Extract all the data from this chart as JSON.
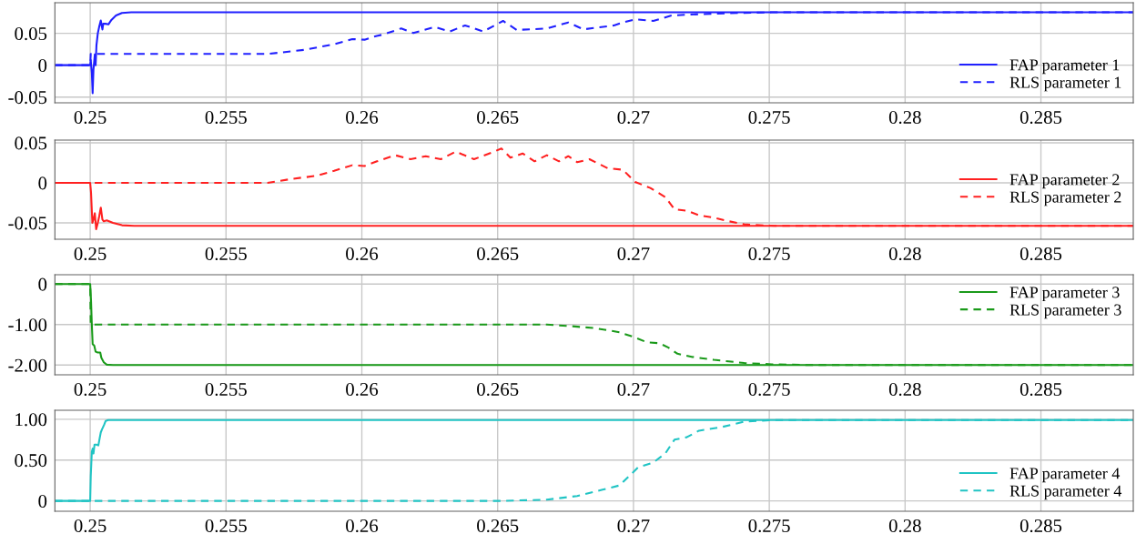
{
  "chart_data": [
    {
      "type": "line",
      "xlim": [
        0.2487,
        0.2884
      ],
      "xticks": [
        0.25,
        0.255,
        0.26,
        0.265,
        0.27,
        0.275,
        0.28,
        0.285
      ],
      "ylim": [
        -0.059,
        0.098
      ],
      "yticks": [
        -0.05,
        0,
        0.05
      ],
      "grid": true,
      "legend": "lower right",
      "series": [
        {
          "name": "FAP parameter 1",
          "color": "#2020ff",
          "line_style": "solid",
          "x": [
            0.2487,
            0.25,
            0.25002,
            0.25006,
            0.25009,
            0.25012,
            0.25017,
            0.2502,
            0.25023,
            0.25028,
            0.25033,
            0.25039,
            0.25045,
            0.25048,
            0.25056,
            0.25067,
            0.25078,
            0.25095,
            0.25117,
            0.25151,
            0.2884
          ],
          "values": [
            0,
            0,
            0.008,
            -0.012,
            -0.044,
            -0.007,
            0.017,
            0,
            0.031,
            0.05,
            0.06,
            0.07,
            0.056,
            0.065,
            0.065,
            0.064,
            0.071,
            0.078,
            0.082,
            0.0829,
            0.0829
          ]
        },
        {
          "name": "RLS parameter 1",
          "color": "#2020ff",
          "line_style": "dashed",
          "x": [
            0.2487,
            0.25,
            0.25002,
            0.25653,
            0.25787,
            0.25898,
            0.25965,
            0.2601,
            0.26055,
            0.26078,
            0.26145,
            0.2619,
            0.26268,
            0.26324,
            0.2638,
            0.26447,
            0.2652,
            0.2657,
            0.26682,
            0.2676,
            0.26816,
            0.26928,
            0.26962,
            0.27006,
            0.27073,
            0.2714,
            0.27241,
            0.27352,
            0.27509,
            0.2884
          ],
          "values": [
            0,
            0,
            0.0176,
            0.0176,
            0.024,
            0.033,
            0.041,
            0.04,
            0.046,
            0.048,
            0.0577,
            0.0505,
            0.06,
            0.0529,
            0.0624,
            0.0529,
            0.0695,
            0.0553,
            0.0576,
            0.067,
            0.0562,
            0.0624,
            0.067,
            0.0719,
            0.0695,
            0.078,
            0.08,
            0.0817,
            0.0829,
            0.0829
          ]
        }
      ]
    },
    {
      "type": "line",
      "xlim": [
        0.2487,
        0.2884
      ],
      "xticks": [
        0.25,
        0.255,
        0.26,
        0.265,
        0.27,
        0.275,
        0.28,
        0.285
      ],
      "ylim": [
        -0.0705,
        0.0534
      ],
      "yticks": [
        -0.05,
        0,
        0.05
      ],
      "grid": true,
      "legend": "right",
      "series": [
        {
          "name": "FAP parameter 2",
          "color": "#ff2020",
          "line_style": "solid",
          "x": [
            0.2487,
            0.25,
            0.25003,
            0.25008,
            0.25012,
            0.25017,
            0.25022,
            0.25028,
            0.25033,
            0.25039,
            0.25045,
            0.2505,
            0.25061,
            0.25084,
            0.25117,
            0.25162,
            0.2884
          ],
          "values": [
            0,
            0,
            -0.012,
            -0.05,
            -0.046,
            -0.038,
            -0.058,
            -0.05,
            -0.042,
            -0.031,
            -0.046,
            -0.048,
            -0.047,
            -0.05,
            -0.053,
            -0.0538,
            -0.0538
          ]
        },
        {
          "name": "RLS parameter 2",
          "color": "#ff2020",
          "line_style": "dashed",
          "x": [
            0.2487,
            0.25653,
            0.25742,
            0.25831,
            0.25898,
            0.25965,
            0.2601,
            0.26056,
            0.26123,
            0.26179,
            0.26235,
            0.26291,
            0.26346,
            0.26413,
            0.26469,
            0.26514,
            0.26547,
            0.26592,
            0.26636,
            0.26681,
            0.26726,
            0.2676,
            0.26793,
            0.26838,
            0.26905,
            0.26961,
            0.27006,
            0.27062,
            0.27117,
            0.27151,
            0.27196,
            0.27241,
            0.27296,
            0.27352,
            0.27408,
            0.2752,
            0.2884
          ],
          "values": [
            0,
            0,
            0.0049,
            0.0087,
            0.015,
            0.022,
            0.021,
            0.0269,
            0.0345,
            0.0295,
            0.0333,
            0.0295,
            0.039,
            0.0295,
            0.0367,
            0.0428,
            0.0314,
            0.0367,
            0.0269,
            0.0345,
            0.0269,
            0.0333,
            0.0258,
            0.0295,
            0.0182,
            0.0163,
            0.0011,
            -0.0064,
            -0.0178,
            -0.033,
            -0.0348,
            -0.0405,
            -0.0436,
            -0.0481,
            -0.0519,
            -0.0538,
            -0.0538
          ]
        }
      ]
    },
    {
      "type": "line",
      "xlim": [
        0.2487,
        0.2884
      ],
      "xticks": [
        0.25,
        0.255,
        0.26,
        0.265,
        0.27,
        0.275,
        0.28,
        0.285
      ],
      "ylim": [
        -2.24,
        0.23
      ],
      "yticks": [
        {
          "value": -2,
          "label": "-2.00"
        },
        {
          "value": -1,
          "label": "-1.00"
        },
        0
      ],
      "grid": true,
      "legend": "top right",
      "series": [
        {
          "name": "FAP parameter 3",
          "color": "#1a9a1a",
          "line_style": "solid",
          "x": [
            0.2487,
            0.25,
            0.25003,
            0.25006,
            0.25009,
            0.25015,
            0.2502,
            0.25028,
            0.25037,
            0.25041,
            0.2505,
            0.25061,
            0.25084,
            0.2884
          ],
          "values": [
            0,
            0,
            -0.4,
            -1.0,
            -1.48,
            -1.52,
            -1.67,
            -1.69,
            -1.69,
            -1.82,
            -1.93,
            -1.99,
            -2.0,
            -2.0
          ]
        },
        {
          "name": "RLS parameter 3",
          "color": "#1a9a1a",
          "line_style": "dashed",
          "x": [
            0.2487,
            0.25,
            0.25002,
            0.26681,
            0.26771,
            0.2686,
            0.26949,
            0.27006,
            0.2705,
            0.27095,
            0.27129,
            0.27162,
            0.27218,
            0.27296,
            0.27408,
            0.27509,
            0.2765,
            0.2884
          ],
          "values": [
            0,
            0,
            -1.0,
            -1.0,
            -1.04,
            -1.09,
            -1.19,
            -1.32,
            -1.44,
            -1.46,
            -1.57,
            -1.72,
            -1.8,
            -1.87,
            -1.95,
            -1.98,
            -2.0,
            -2.0
          ]
        }
      ]
    },
    {
      "type": "line",
      "xlim": [
        0.2487,
        0.2884
      ],
      "xticks": [
        0.25,
        0.255,
        0.26,
        0.265,
        0.27,
        0.275,
        0.28,
        0.285
      ],
      "ylim": [
        -0.127,
        1.11
      ],
      "yticks": [
        0,
        {
          "value": 0.5,
          "label": "0.50"
        },
        {
          "value": 1,
          "label": "1.00"
        }
      ],
      "grid": true,
      "legend": "lower right",
      "series": [
        {
          "name": "FAP parameter 4",
          "color": "#20c4c4",
          "line_style": "solid",
          "x": [
            0.2487,
            0.25,
            0.25002,
            0.25006,
            0.25009,
            0.25012,
            0.25016,
            0.25023,
            0.2503,
            0.25035,
            0.25039,
            0.25044,
            0.25051,
            0.25057,
            0.25066,
            0.2884
          ],
          "values": [
            0,
            0,
            0.3,
            0.6,
            0.64,
            0.58,
            0.69,
            0.69,
            0.68,
            0.77,
            0.84,
            0.88,
            0.93,
            0.98,
            0.99,
            0.99
          ]
        },
        {
          "name": "RLS parameter 4",
          "color": "#20c4c4",
          "line_style": "dashed",
          "x": [
            0.2487,
            0.26514,
            0.26681,
            0.26793,
            0.26883,
            0.26949,
            0.26983,
            0.27017,
            0.27073,
            0.27117,
            0.27151,
            0.27196,
            0.27241,
            0.27319,
            0.27408,
            0.27509,
            0.2884
          ],
          "values": [
            0,
            0,
            0.015,
            0.06,
            0.134,
            0.19,
            0.3,
            0.41,
            0.47,
            0.58,
            0.75,
            0.78,
            0.86,
            0.9,
            0.97,
            0.99,
            0.99
          ]
        }
      ]
    }
  ]
}
